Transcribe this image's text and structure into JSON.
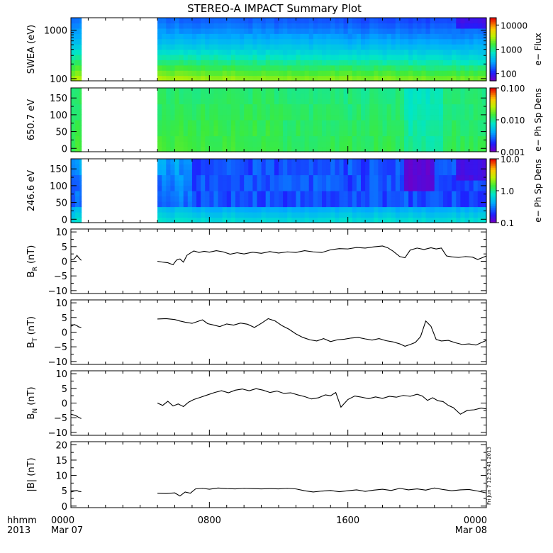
{
  "chart_data": {
    "title": "STEREO-A IMPACT Summary Plot",
    "stamp": "Fri Jun  7 12:23:41 2013",
    "x_axis": {
      "label_top": "hhmm",
      "label_bottom": "2013",
      "range_hours": [
        0,
        24
      ],
      "ticks": [
        {
          "hour": 0,
          "label": "0000",
          "sublabel": "Mar 07"
        },
        {
          "hour": 8,
          "label": "0800",
          "sublabel": ""
        },
        {
          "hour": 16,
          "label": "1600",
          "sublabel": ""
        },
        {
          "hour": 24,
          "label": "0000",
          "sublabel": "Mar 08"
        }
      ]
    },
    "panels": [
      {
        "id": "swea",
        "type": "heatmap",
        "ylabel": "SWEA (eV)",
        "yscale": "log",
        "ylim": [
          90,
          1800
        ],
        "yticks": [
          {
            "value": 100,
            "label": "100"
          },
          {
            "value": 1000,
            "label": "1000"
          }
        ],
        "colorbar": {
          "label": "e− Flux",
          "scale": "log",
          "range": [
            50,
            20000
          ],
          "ticks": [
            {
              "value": 100,
              "label": "100"
            },
            {
              "value": 1000,
              "label": "1000"
            },
            {
              "value": 10000,
              "label": "10000"
            }
          ]
        },
        "data_gap_hours": [
          0.6,
          5.0
        ]
      },
      {
        "id": "pa650",
        "type": "heatmap",
        "ylabel": "650.7 eV",
        "yscale": "linear",
        "ylim": [
          -10,
          180
        ],
        "yticks": [
          {
            "value": 0,
            "label": "0"
          },
          {
            "value": 50,
            "label": "50"
          },
          {
            "value": 100,
            "label": "100"
          },
          {
            "value": 150,
            "label": "150"
          }
        ],
        "colorbar": {
          "label": "e− Ph Sp Dens",
          "scale": "log",
          "range": [
            0.001,
            0.1
          ],
          "ticks": [
            {
              "value": 0.001,
              "label": "0.001"
            },
            {
              "value": 0.01,
              "label": "0.010"
            },
            {
              "value": 0.1,
              "label": "0.100"
            }
          ]
        },
        "data_gap_hours": [
          0.6,
          5.0
        ]
      },
      {
        "id": "pa246",
        "type": "heatmap",
        "ylabel": "246.6 eV",
        "yscale": "linear",
        "ylim": [
          -10,
          180
        ],
        "yticks": [
          {
            "value": 0,
            "label": "0"
          },
          {
            "value": 50,
            "label": "50"
          },
          {
            "value": 100,
            "label": "100"
          },
          {
            "value": 150,
            "label": "150"
          }
        ],
        "colorbar": {
          "label": "e− Ph Sp Dens",
          "scale": "log",
          "range": [
            0.1,
            10
          ],
          "ticks": [
            {
              "value": 0.1,
              "label": "0.1"
            },
            {
              "value": 1,
              "label": "1.0"
            },
            {
              "value": 10,
              "label": "10.0"
            }
          ]
        },
        "data_gap_hours": [
          0.6,
          5.0
        ]
      },
      {
        "id": "br",
        "type": "line",
        "ylabel": "B",
        "ysub": "R",
        "yunit": " (nT)",
        "ylim": [
          -11,
          11
        ],
        "yticks": [
          {
            "value": -10,
            "label": "−10"
          },
          {
            "value": -5,
            "label": "−5"
          },
          {
            "value": 0,
            "label": "0"
          },
          {
            "value": 5,
            "label": "5"
          },
          {
            "value": 10,
            "label": "10"
          }
        ],
        "series": [
          {
            "x": [
              0.0,
              0.2,
              0.35,
              0.45,
              0.6
            ],
            "y": [
              0.5,
              0.8,
              2.0,
              1.2,
              0.3
            ]
          },
          {
            "x": [
              5.0,
              5.3,
              5.6,
              5.9,
              6.1,
              6.3,
              6.5,
              6.7,
              6.9,
              7.1,
              7.4,
              7.7,
              8.0,
              8.4,
              8.8,
              9.2,
              9.6,
              10.0,
              10.5,
              11.0,
              11.5,
              12.0,
              12.5,
              13.0,
              13.5,
              14.0,
              14.5,
              15.0,
              15.5,
              16.0,
              16.5,
              17.0,
              17.5,
              18.0,
              18.3,
              18.6,
              19.0,
              19.3,
              19.6,
              20.0,
              20.4,
              20.8,
              21.1,
              21.4,
              21.7,
              22.0,
              22.4,
              22.8,
              23.2,
              23.5,
              23.8,
              24.0
            ],
            "y": [
              0.0,
              -0.3,
              -0.5,
              -1.2,
              0.4,
              0.8,
              -0.3,
              2.0,
              2.8,
              3.5,
              3.0,
              3.4,
              3.1,
              3.6,
              3.2,
              2.4,
              2.9,
              2.5,
              3.1,
              2.7,
              3.3,
              2.8,
              3.2,
              3.0,
              3.6,
              3.2,
              3.0,
              3.9,
              4.3,
              4.2,
              4.7,
              4.5,
              4.9,
              5.2,
              4.6,
              3.5,
              1.6,
              1.2,
              3.8,
              4.5,
              4.0,
              4.6,
              4.2,
              4.5,
              1.8,
              1.5,
              1.3,
              1.6,
              1.4,
              0.6,
              1.3,
              1.8
            ]
          }
        ]
      },
      {
        "id": "bt",
        "type": "line",
        "ylabel": "B",
        "ysub": "T",
        "yunit": " (nT)",
        "ylim": [
          -11,
          11
        ],
        "yticks": [
          {
            "value": -10,
            "label": "−10"
          },
          {
            "value": -5,
            "label": "−5"
          },
          {
            "value": 0,
            "label": "0"
          },
          {
            "value": 5,
            "label": "5"
          },
          {
            "value": 10,
            "label": "10"
          }
        ],
        "series": [
          {
            "x": [
              0.0,
              0.2,
              0.35,
              0.45,
              0.6
            ],
            "y": [
              2.0,
              2.6,
              2.2,
              1.8,
              1.6
            ]
          },
          {
            "x": [
              5.0,
              5.5,
              6.0,
              6.3,
              6.6,
              7.0,
              7.3,
              7.6,
              7.9,
              8.2,
              8.6,
              9.0,
              9.4,
              9.8,
              10.2,
              10.6,
              11.0,
              11.4,
              11.8,
              12.2,
              12.6,
              13.0,
              13.4,
              13.8,
              14.2,
              14.6,
              15.0,
              15.4,
              15.8,
              16.2,
              16.6,
              17.0,
              17.4,
              17.8,
              18.2,
              18.6,
              19.0,
              19.3,
              19.6,
              19.9,
              20.2,
              20.5,
              20.8,
              21.1,
              21.4,
              21.8,
              22.2,
              22.6,
              23.0,
              23.4,
              23.7,
              24.0
            ],
            "y": [
              4.5,
              4.6,
              4.3,
              3.8,
              3.4,
              3.0,
              3.6,
              4.2,
              2.9,
              2.5,
              1.9,
              2.8,
              2.4,
              3.1,
              2.7,
              1.6,
              3.0,
              4.6,
              3.8,
              2.2,
              1.0,
              -0.6,
              -1.8,
              -2.6,
              -3.0,
              -2.2,
              -3.2,
              -2.6,
              -2.4,
              -2.0,
              -1.8,
              -2.3,
              -2.7,
              -2.2,
              -2.9,
              -3.3,
              -4.0,
              -4.8,
              -4.2,
              -3.5,
              -1.5,
              3.8,
              2.0,
              -2.5,
              -3.0,
              -2.8,
              -3.6,
              -4.2,
              -4.0,
              -4.4,
              -3.6,
              -2.8
            ]
          }
        ]
      },
      {
        "id": "bn",
        "type": "line",
        "ylabel": "B",
        "ysub": "N",
        "yunit": " (nT)",
        "ylim": [
          -11,
          11
        ],
        "yticks": [
          {
            "value": -10,
            "label": "−10"
          },
          {
            "value": -5,
            "label": "−5"
          },
          {
            "value": 0,
            "label": "0"
          },
          {
            "value": 5,
            "label": "5"
          },
          {
            "value": 10,
            "label": "10"
          }
        ],
        "series": [
          {
            "x": [
              0.0,
              0.2,
              0.35,
              0.45,
              0.6
            ],
            "y": [
              -3.8,
              -4.1,
              -4.5,
              -4.9,
              -5.3
            ]
          },
          {
            "x": [
              5.0,
              5.3,
              5.6,
              5.9,
              6.2,
              6.5,
              6.8,
              7.1,
              7.5,
              7.9,
              8.3,
              8.7,
              9.1,
              9.5,
              9.9,
              10.3,
              10.7,
              11.1,
              11.5,
              11.9,
              12.3,
              12.7,
              13.1,
              13.5,
              13.9,
              14.3,
              14.7,
              15.0,
              15.3,
              15.6,
              16.0,
              16.4,
              16.8,
              17.2,
              17.6,
              18.0,
              18.4,
              18.8,
              19.2,
              19.6,
              20.0,
              20.3,
              20.6,
              20.9,
              21.2,
              21.5,
              21.8,
              22.1,
              22.5,
              22.9,
              23.3,
              23.7,
              24.0
            ],
            "y": [
              0.0,
              -0.8,
              0.6,
              -1.0,
              -0.3,
              -1.2,
              0.3,
              1.2,
              2.0,
              2.8,
              3.6,
              4.2,
              3.5,
              4.4,
              4.8,
              4.2,
              4.9,
              4.4,
              3.6,
              4.1,
              3.3,
              3.5,
              2.8,
              2.2,
              1.4,
              1.8,
              2.8,
              2.5,
              3.6,
              -1.4,
              1.2,
              2.4,
              2.0,
              1.5,
              2.1,
              1.6,
              2.3,
              2.0,
              2.6,
              2.3,
              3.0,
              2.4,
              0.9,
              1.8,
              0.8,
              0.5,
              -0.8,
              -1.6,
              -3.8,
              -2.5,
              -2.3,
              -1.7,
              -2.0
            ]
          }
        ]
      },
      {
        "id": "bmag",
        "type": "line",
        "ylabel": "|B| (nT)",
        "ylim": [
          -0.5,
          21
        ],
        "yticks": [
          {
            "value": 0,
            "label": "0"
          },
          {
            "value": 5,
            "label": "5"
          },
          {
            "value": 10,
            "label": "10"
          },
          {
            "value": 15,
            "label": "15"
          },
          {
            "value": 20,
            "label": "20"
          }
        ],
        "series": [
          {
            "x": [
              0.0,
              0.2,
              0.35,
              0.45,
              0.6
            ],
            "y": [
              4.6,
              4.9,
              5.1,
              4.8,
              4.7
            ]
          },
          {
            "x": [
              5.0,
              5.5,
              6.0,
              6.3,
              6.6,
              6.9,
              7.2,
              7.6,
              8.0,
              8.5,
              9.0,
              9.5,
              10.0,
              10.5,
              11.0,
              11.5,
              12.0,
              12.5,
              13.0,
              13.5,
              14.0,
              14.5,
              15.0,
              15.5,
              16.0,
              16.5,
              17.0,
              17.5,
              18.0,
              18.5,
              19.0,
              19.5,
              20.0,
              20.5,
              21.0,
              21.5,
              22.0,
              22.5,
              23.0,
              23.5,
              24.0
            ],
            "y": [
              4.2,
              4.1,
              4.3,
              3.3,
              4.6,
              4.2,
              5.6,
              5.8,
              5.5,
              5.9,
              5.7,
              5.6,
              5.8,
              5.7,
              5.6,
              5.7,
              5.6,
              5.8,
              5.6,
              5.0,
              4.6,
              4.9,
              5.1,
              4.7,
              5.0,
              5.3,
              4.8,
              5.2,
              5.5,
              5.1,
              5.8,
              5.3,
              5.6,
              5.2,
              5.9,
              5.4,
              5.0,
              5.3,
              5.4,
              4.9,
              4.3
            ]
          }
        ]
      }
    ]
  }
}
